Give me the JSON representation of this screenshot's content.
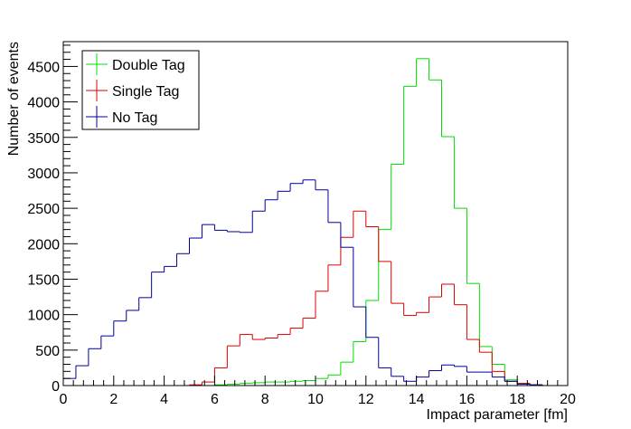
{
  "chart_data": {
    "type": "histogram-step",
    "xlabel": "Impact parameter [fm]",
    "ylabel": "Number of events",
    "xlim": [
      0,
      20
    ],
    "ylim": [
      0,
      4850
    ],
    "x_major_ticks": [
      0,
      2,
      4,
      6,
      8,
      10,
      12,
      14,
      16,
      18,
      20
    ],
    "y_major_ticks": [
      0,
      500,
      1000,
      1500,
      2000,
      2500,
      3000,
      3500,
      4000,
      4500
    ],
    "grid": false,
    "legend_position": "top-left",
    "bin_width": 0.5,
    "bin_edges": [
      0,
      0.5,
      1,
      1.5,
      2,
      2.5,
      3,
      3.5,
      4,
      4.5,
      5,
      5.5,
      6,
      6.5,
      7,
      7.5,
      8,
      8.5,
      9,
      9.5,
      10,
      10.5,
      11,
      11.5,
      12,
      12.5,
      13,
      13.5,
      14,
      14.5,
      15,
      15.5,
      16,
      16.5,
      17,
      17.5,
      18,
      18.5,
      19,
      19.5,
      20
    ],
    "series": [
      {
        "name": "Double Tag",
        "color": "#00dd00",
        "values": [
          0,
          0,
          0,
          0,
          0,
          0,
          0,
          0,
          0,
          0,
          0,
          0,
          10,
          20,
          30,
          40,
          50,
          50,
          60,
          70,
          100,
          150,
          330,
          620,
          1200,
          2200,
          3120,
          4220,
          4610,
          4310,
          3510,
          2500,
          1440,
          550,
          300,
          80,
          30,
          10,
          0,
          0
        ]
      },
      {
        "name": "Single Tag",
        "color": "#dd0000",
        "values": [
          0,
          0,
          0,
          0,
          0,
          0,
          0,
          0,
          0,
          0,
          10,
          50,
          250,
          560,
          720,
          650,
          670,
          720,
          810,
          950,
          1330,
          1700,
          2090,
          2460,
          2240,
          1750,
          1160,
          990,
          1030,
          1250,
          1430,
          1140,
          650,
          470,
          200,
          60,
          30,
          10,
          0,
          0
        ]
      },
      {
        "name": "No Tag",
        "color": "#000099",
        "values": [
          100,
          280,
          520,
          700,
          910,
          1060,
          1240,
          1600,
          1680,
          1860,
          2080,
          2270,
          2190,
          2170,
          2160,
          2460,
          2620,
          2740,
          2850,
          2900,
          2760,
          2300,
          1950,
          1110,
          680,
          250,
          130,
          60,
          120,
          210,
          290,
          270,
          190,
          190,
          120,
          60,
          20,
          10,
          0,
          0
        ]
      }
    ]
  }
}
